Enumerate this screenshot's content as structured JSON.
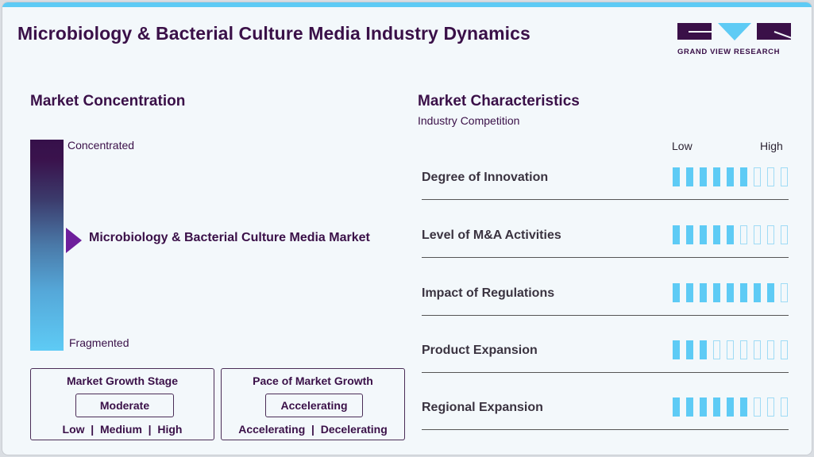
{
  "header": {
    "title": "Microbiology & Bacterial Culture Media Industry Dynamics",
    "logo_text": "GRAND VIEW RESEARCH"
  },
  "concentration": {
    "title": "Market Concentration",
    "top_label": "Concentrated",
    "bottom_label": "Fragmented",
    "market_label": "Microbiology & Bacterial Culture Media Market",
    "position": "middle"
  },
  "growth_stage": {
    "title": "Market Growth Stage",
    "value": "Moderate",
    "options": "Low  |  Medium  |  High"
  },
  "growth_pace": {
    "title": "Pace of Market Growth",
    "value": "Accelerating",
    "options": "Accelerating  |  Decelerating"
  },
  "characteristics": {
    "title": "Market Characteristics",
    "subtitle": "Industry Competition",
    "scale_low": "Low",
    "scale_high": "High",
    "max_level": 9,
    "rows": [
      {
        "label": "Degree of Innovation",
        "level": 6
      },
      {
        "label": "Level of M&A Activities",
        "level": 5
      },
      {
        "label": "Impact of Regulations",
        "level": 8
      },
      {
        "label": "Product Expansion",
        "level": 3
      },
      {
        "label": "Regional Expansion",
        "level": 6
      }
    ]
  },
  "colors": {
    "brand_dark": "#3a1048",
    "accent": "#5ecbf5",
    "arrow": "#6e1f9c"
  }
}
